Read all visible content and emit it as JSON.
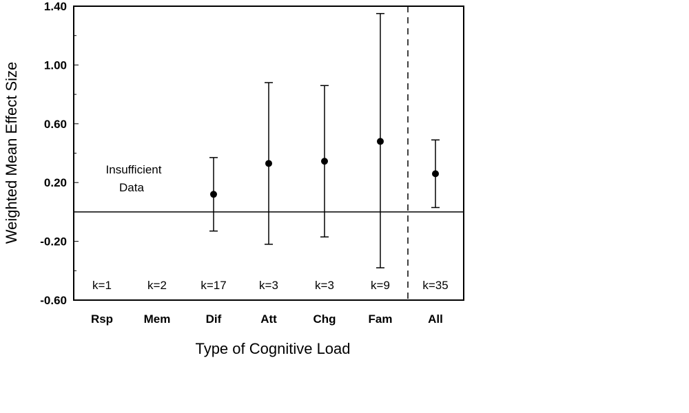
{
  "chart_data": {
    "type": "errorbar",
    "xlabel": "Type of Cognitive Load",
    "ylabel": "Weighted Mean Effect Size",
    "ylim": [
      -0.6,
      1.4
    ],
    "yticks": [
      "1.40",
      "1.00",
      "0.60",
      "0.20",
      "-0.20",
      "-0.60"
    ],
    "yticks_values": [
      1.4,
      1.0,
      0.6,
      0.2,
      -0.2,
      -0.6
    ],
    "reference_line": 0.0,
    "grid": false,
    "categories": [
      "Rsp",
      "Mem",
      "Dif",
      "Att",
      "Chg",
      "Fam",
      "All"
    ],
    "k_labels": [
      "k=1",
      "k=2",
      "k=17",
      "k=3",
      "k=3",
      "k=9",
      "k=35"
    ],
    "points": [
      {
        "category": "Rsp",
        "mean": null,
        "lower": null,
        "upper": null
      },
      {
        "category": "Mem",
        "mean": null,
        "lower": null,
        "upper": null
      },
      {
        "category": "Dif",
        "mean": 0.12,
        "lower": -0.13,
        "upper": 0.37
      },
      {
        "category": "Att",
        "mean": 0.33,
        "lower": -0.22,
        "upper": 0.88
      },
      {
        "category": "Chg",
        "mean": 0.345,
        "lower": -0.17,
        "upper": 0.86
      },
      {
        "category": "Fam",
        "mean": 0.48,
        "lower": -0.38,
        "upper": 1.35
      },
      {
        "category": "All",
        "mean": 0.26,
        "lower": 0.03,
        "upper": 0.49
      }
    ],
    "annotation": {
      "lines": [
        "Insufficient",
        "Data"
      ]
    },
    "separator": "dashed line between Fam and All"
  }
}
